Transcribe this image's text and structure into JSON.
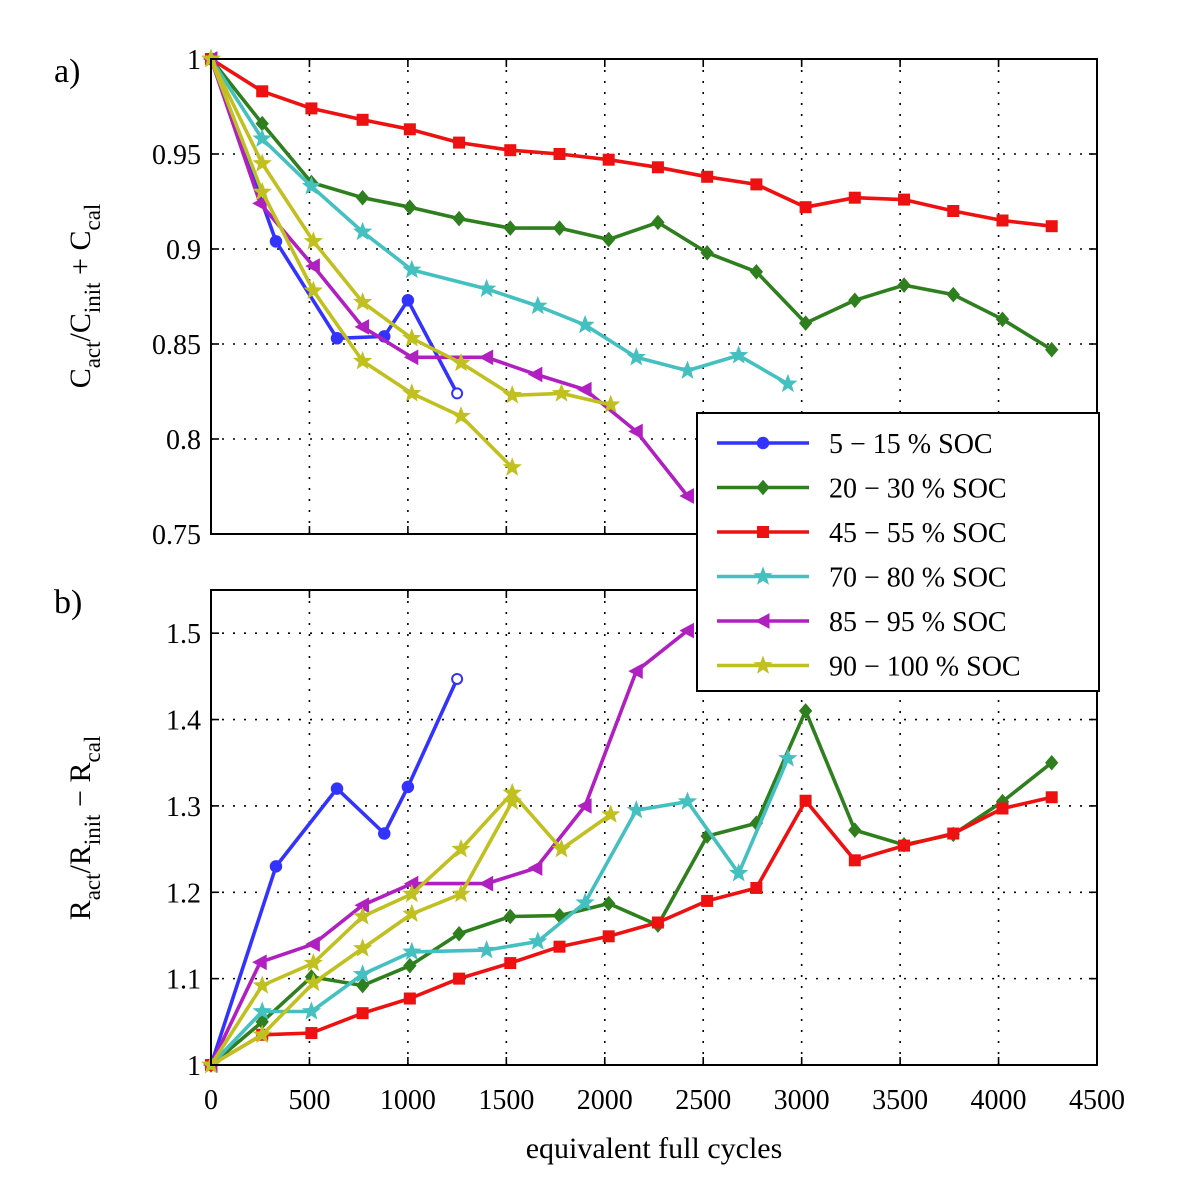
{
  "chart_data": [
    {
      "type": "line",
      "panel_label": "a)",
      "xlabel": "",
      "ylabel": "C_act/C_init + C_cal",
      "xlim": [
        0,
        4500
      ],
      "ylim": [
        0.75,
        1.0
      ],
      "xticks": [
        0,
        500,
        1000,
        1500,
        2000,
        2500,
        3000,
        3500,
        4000,
        4500
      ],
      "yticks": [
        0.75,
        0.8,
        0.85,
        0.9,
        0.95,
        1
      ],
      "grid": true,
      "legend": "lower-right",
      "series": [
        {
          "name": "5 − 15 % SOC",
          "color": "#3333ff",
          "marker": "circle",
          "x": [
            0,
            330,
            640,
            880,
            1000,
            1250
          ],
          "y": [
            1.0,
            0.904,
            0.853,
            0.854,
            0.873,
            0.824
          ]
        },
        {
          "name": "20 − 30 % SOC",
          "color": "#2f7f1f",
          "marker": "diamond",
          "x": [
            0,
            260,
            510,
            770,
            1010,
            1260,
            1520,
            1770,
            2020,
            2270,
            2520,
            2770,
            3020,
            3270,
            3520,
            3770,
            4020,
            4270
          ],
          "y": [
            1.0,
            0.966,
            0.935,
            0.927,
            0.922,
            0.916,
            0.911,
            0.911,
            0.905,
            0.914,
            0.898,
            0.888,
            0.861,
            0.873,
            0.881,
            0.876,
            0.863,
            0.847
          ]
        },
        {
          "name": "45 − 55 % SOC",
          "color": "#ee1111",
          "marker": "square",
          "x": [
            0,
            260,
            510,
            770,
            1010,
            1260,
            1520,
            1770,
            2020,
            2270,
            2520,
            2770,
            3020,
            3270,
            3520,
            3770,
            4020,
            4270
          ],
          "y": [
            1.0,
            0.983,
            0.974,
            0.968,
            0.963,
            0.956,
            0.952,
            0.95,
            0.947,
            0.943,
            0.938,
            0.934,
            0.922,
            0.927,
            0.926,
            0.92,
            0.915,
            0.912
          ]
        },
        {
          "name": "70 − 80 % SOC",
          "color": "#44c0c0",
          "marker": "star",
          "x": [
            0,
            260,
            510,
            770,
            1020,
            1400,
            1660,
            1900,
            2160,
            2420,
            2680,
            2930
          ],
          "y": [
            1.0,
            0.958,
            0.933,
            0.909,
            0.889,
            0.879,
            0.87,
            0.86,
            0.843,
            0.836,
            0.844,
            0.829
          ]
        },
        {
          "name": "85 − 95 % SOC",
          "color": "#b020c0",
          "marker": "triangle-left",
          "x": [
            0,
            250,
            520,
            770,
            1020,
            1400,
            1650,
            1900,
            2160,
            2420
          ],
          "y": [
            1.0,
            0.924,
            0.891,
            0.859,
            0.843,
            0.843,
            0.834,
            0.826,
            0.804,
            0.77
          ]
        },
        {
          "name": "90 − 100 % SOC",
          "color": "#c0c020",
          "marker": "star",
          "x": [
            0,
            260,
            520,
            770,
            1020,
            1270,
            1530,
            1780,
            2030
          ],
          "y": [
            1.0,
            0.945,
            0.904,
            0.872,
            0.853,
            0.84,
            0.823,
            0.824,
            0.818
          ]
        },
        {
          "name": "",
          "color": "#c0c020",
          "marker": "star",
          "x": [
            0,
            260,
            520,
            770,
            1020,
            1270,
            1530
          ],
          "y": [
            1.0,
            0.93,
            0.878,
            0.841,
            0.824,
            0.812,
            0.785
          ]
        }
      ]
    },
    {
      "type": "line",
      "panel_label": "b)",
      "xlabel": "equivalent full cycles",
      "ylabel": "R_act/R_init − R_cal",
      "xlim": [
        0,
        4500
      ],
      "ylim": [
        1.0,
        1.55
      ],
      "xticks": [
        0,
        500,
        1000,
        1500,
        2000,
        2500,
        3000,
        3500,
        4000,
        4500
      ],
      "yticks": [
        1,
        1.1,
        1.2,
        1.3,
        1.4,
        1.5
      ],
      "grid": true,
      "series": [
        {
          "name": "5 − 15 % SOC",
          "color": "#3333ff",
          "marker": "circle",
          "x": [
            0,
            330,
            640,
            880,
            1000,
            1250
          ],
          "y": [
            1.0,
            1.23,
            1.32,
            1.268,
            1.322,
            1.447
          ]
        },
        {
          "name": "20 − 30 % SOC",
          "color": "#2f7f1f",
          "marker": "diamond",
          "x": [
            0,
            260,
            510,
            770,
            1010,
            1260,
            1520,
            1770,
            2020,
            2270,
            2520,
            2770,
            3020,
            3270,
            3520,
            3770,
            4020,
            4270
          ],
          "y": [
            1.0,
            1.05,
            1.102,
            1.092,
            1.115,
            1.152,
            1.172,
            1.173,
            1.187,
            1.162,
            1.265,
            1.28,
            1.41,
            1.272,
            1.255,
            1.267,
            1.305,
            1.35
          ]
        },
        {
          "name": "45 − 55 % SOC",
          "color": "#ee1111",
          "marker": "square",
          "x": [
            0,
            260,
            510,
            770,
            1010,
            1260,
            1520,
            1770,
            2020,
            2270,
            2520,
            2770,
            3020,
            3270,
            3520,
            3770,
            4020,
            4270
          ],
          "y": [
            1.0,
            1.035,
            1.037,
            1.06,
            1.077,
            1.1,
            1.118,
            1.137,
            1.149,
            1.165,
            1.19,
            1.205,
            1.306,
            1.237,
            1.254,
            1.268,
            1.297,
            1.31
          ]
        },
        {
          "name": "70 − 80 % SOC",
          "color": "#44c0c0",
          "marker": "star",
          "x": [
            0,
            260,
            510,
            770,
            1020,
            1400,
            1660,
            1900,
            2160,
            2420,
            2680,
            2930
          ],
          "y": [
            1.0,
            1.062,
            1.062,
            1.105,
            1.131,
            1.133,
            1.143,
            1.188,
            1.295,
            1.305,
            1.222,
            1.355
          ]
        },
        {
          "name": "85 − 95 % SOC",
          "color": "#b020c0",
          "marker": "triangle-left",
          "x": [
            0,
            250,
            520,
            770,
            1020,
            1400,
            1650,
            1900,
            2160,
            2420
          ],
          "y": [
            1.0,
            1.119,
            1.14,
            1.185,
            1.21,
            1.21,
            1.228,
            1.3,
            1.456,
            1.503
          ]
        },
        {
          "name": "90 − 100 % SOC",
          "color": "#c0c020",
          "marker": "star",
          "x": [
            0,
            260,
            520,
            770,
            1020,
            1270,
            1530,
            1780,
            2030
          ],
          "y": [
            1.0,
            1.092,
            1.118,
            1.172,
            1.198,
            1.25,
            1.315,
            1.25,
            1.29
          ]
        },
        {
          "name": "",
          "color": "#c0c020",
          "marker": "star",
          "x": [
            0,
            260,
            520,
            770,
            1020,
            1270,
            1530
          ],
          "y": [
            1.0,
            1.035,
            1.095,
            1.135,
            1.175,
            1.198,
            1.305
          ]
        }
      ]
    }
  ],
  "legend": {
    "entries": [
      {
        "label": "5 − 15 % SOC",
        "color": "#3333ff",
        "marker": "circle"
      },
      {
        "label": "20 − 30 % SOC",
        "color": "#2f7f1f",
        "marker": "diamond"
      },
      {
        "label": "45 − 55 % SOC",
        "color": "#ee1111",
        "marker": "square"
      },
      {
        "label": "70 − 80 % SOC",
        "color": "#44c0c0",
        "marker": "star"
      },
      {
        "label": "85 − 95 % SOC",
        "color": "#b020c0",
        "marker": "triangle-left"
      },
      {
        "label": "90 − 100 % SOC",
        "color": "#c0c020",
        "marker": "star"
      }
    ]
  },
  "labels": {
    "a_ylabel_parts": {
      "c1": "C",
      "s1": "act",
      "c2": "/C",
      "s2": "init",
      "c3": " + C",
      "s3": "cal"
    },
    "b_ylabel_parts": {
      "c1": "R",
      "s1": "act",
      "c2": "/R",
      "s2": "init",
      "c3": " − R",
      "s3": "cal"
    }
  }
}
